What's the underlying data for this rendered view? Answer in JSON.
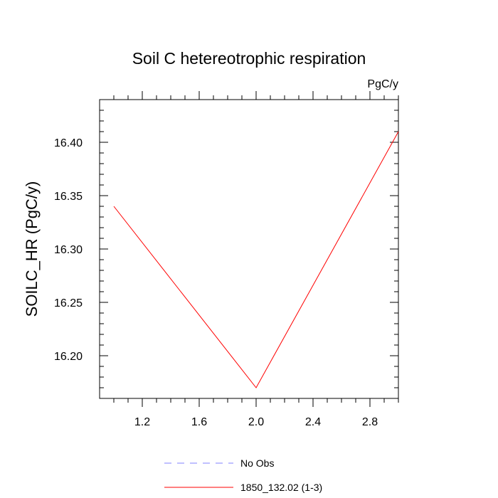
{
  "chart_data": {
    "type": "line",
    "title": "Soil C hetereotrophic respiration",
    "units_label": "PgC/y",
    "xlabel": "",
    "ylabel": "SOILC_HR  (PgC/y)",
    "xlim": [
      0.9,
      3.0
    ],
    "ylim": [
      16.16,
      16.44
    ],
    "xticks": [
      1.2,
      1.6,
      2.0,
      2.4,
      2.8
    ],
    "xtick_labels": [
      "1.2",
      "1.6",
      "2.0",
      "2.4",
      "2.8"
    ],
    "yticks": [
      16.2,
      16.25,
      16.3,
      16.35,
      16.4
    ],
    "ytick_labels": [
      "16.20",
      "16.25",
      "16.30",
      "16.35",
      "16.40"
    ],
    "series": [
      {
        "name": "1850_132.02 (1-3)",
        "color": "#ff0000",
        "dash": "solid",
        "x": [
          1.0,
          2.0,
          3.0
        ],
        "y": [
          16.34,
          16.17,
          16.41
        ]
      }
    ],
    "legend": [
      {
        "label": "No Obs",
        "color": "#8080ff",
        "dash": "dashed"
      },
      {
        "label": "1850_132.02 (1-3)",
        "color": "#ff0000",
        "dash": "solid"
      }
    ],
    "legend_position": "bottom-center",
    "grid": false
  }
}
